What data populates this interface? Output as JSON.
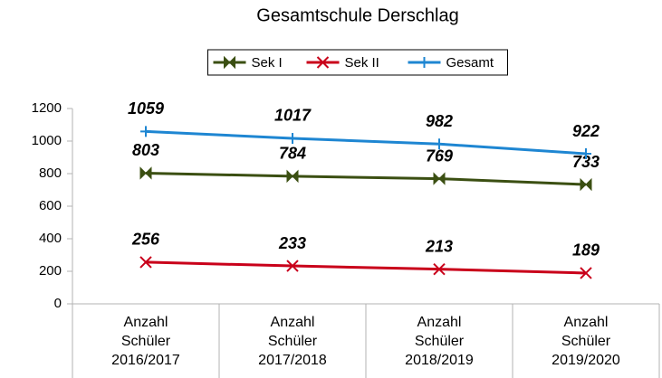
{
  "chart_data": {
    "type": "line",
    "title": "Gesamtschule Derschlag",
    "categories": [
      "Anzahl\nSchüler\n2016/2017",
      "Anzahl\nSchüler\n2017/2018",
      "Anzahl\nSchüler\n2018/2019",
      "Anzahl\nSchüler\n2019/2020"
    ],
    "series": [
      {
        "name": "Sek I",
        "color": "#3b4f12",
        "marker": "bowtie",
        "values": [
          803,
          784,
          769,
          733
        ]
      },
      {
        "name": "Sek II",
        "color": "#c9001a",
        "marker": "x",
        "values": [
          256,
          233,
          213,
          189
        ]
      },
      {
        "name": "Gesamt",
        "color": "#1e86d2",
        "marker": "plus",
        "values": [
          1059,
          1017,
          982,
          922
        ]
      }
    ],
    "ylim": [
      0,
      1200
    ],
    "yticks": [
      0,
      200,
      400,
      600,
      800,
      1000,
      1200
    ],
    "grid": false,
    "legend": "top"
  }
}
